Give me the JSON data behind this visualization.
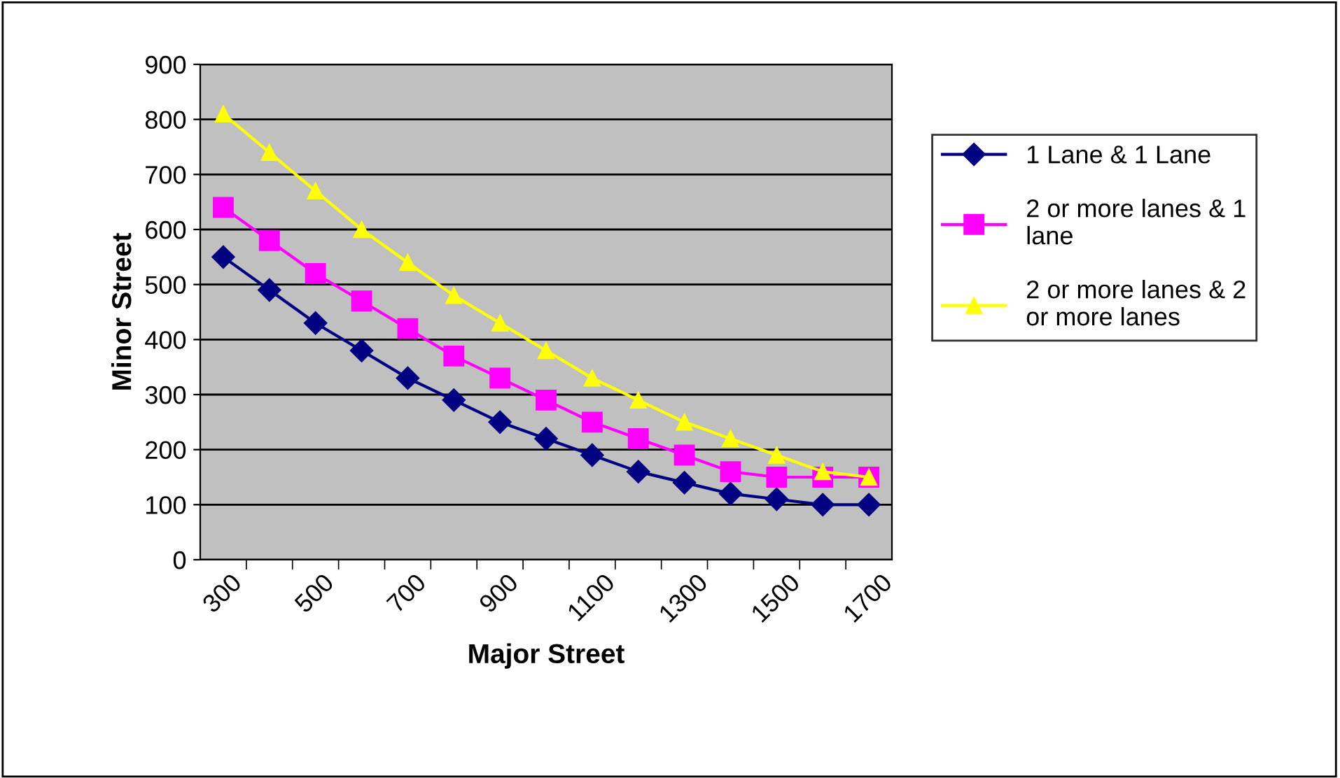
{
  "chart_data": {
    "type": "line",
    "xlabel": "Major Street",
    "ylabel": "Minor Street",
    "categories": [
      "300",
      null,
      "500",
      null,
      "700",
      null,
      "900",
      null,
      "1100",
      null,
      "1300",
      null,
      "1500",
      null,
      "1700"
    ],
    "series": [
      {
        "name": "1 Lane & 1 Lane",
        "color": "#000080",
        "marker": "diamond",
        "values": [
          550,
          490,
          430,
          380,
          330,
          290,
          250,
          220,
          190,
          160,
          140,
          120,
          110,
          100,
          100
        ]
      },
      {
        "name": "2 or more lanes & 1 lane",
        "color": "#ff00ff",
        "marker": "square",
        "values": [
          640,
          580,
          520,
          470,
          420,
          370,
          330,
          290,
          250,
          220,
          190,
          160,
          150,
          150,
          150
        ]
      },
      {
        "name": "2 or more lanes & 2 or more lanes",
        "color": "#ffff00",
        "marker": "triangle",
        "values": [
          810,
          740,
          670,
          600,
          540,
          480,
          430,
          380,
          330,
          290,
          250,
          220,
          190,
          160,
          150
        ]
      }
    ],
    "ylim": [
      0,
      900
    ],
    "yticks": [
      0,
      100,
      200,
      300,
      400,
      500,
      600,
      700,
      800,
      900
    ],
    "grid": "y",
    "legend": "right",
    "line_style": "solid"
  }
}
